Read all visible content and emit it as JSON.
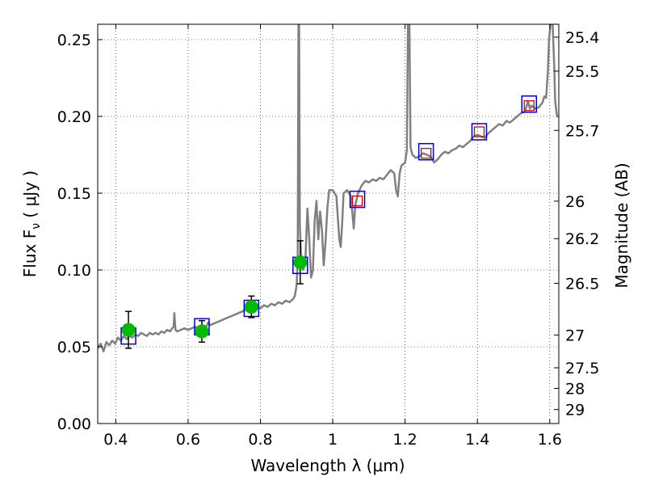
{
  "chart_data": {
    "type": "line",
    "xlabel": "Wavelength  λ (μm)",
    "ylabel": "Flux  F",
    "ylabel_sub": "ν",
    "ylabel_unit": " ( μJy )",
    "y2label": "Magnitude (AB)",
    "xlim": [
      0.35,
      1.625
    ],
    "ylim": [
      0.0,
      0.26
    ],
    "grid": true,
    "x_ticks": [
      {
        "value": 0.4,
        "label": "0.4"
      },
      {
        "value": 0.6,
        "label": "0.6"
      },
      {
        "value": 0.8,
        "label": "0.8"
      },
      {
        "value": 1.0,
        "label": "1"
      },
      {
        "value": 1.2,
        "label": "1.2"
      },
      {
        "value": 1.4,
        "label": "1.4"
      },
      {
        "value": 1.6,
        "label": "1.6"
      }
    ],
    "y_ticks": [
      {
        "value": 0.0,
        "label": "0.00"
      },
      {
        "value": 0.05,
        "label": "0.05"
      },
      {
        "value": 0.1,
        "label": "0.10"
      },
      {
        "value": 0.15,
        "label": "0.15"
      },
      {
        "value": 0.2,
        "label": "0.20"
      },
      {
        "value": 0.25,
        "label": "0.25"
      }
    ],
    "magnitude_ticks": [
      {
        "label": "25.4",
        "flux": 0.2516
      },
      {
        "label": "25.5",
        "flux": 0.2295
      },
      {
        "label": "25.7",
        "flux": 0.1909
      },
      {
        "label": "26",
        "flux": 0.1448
      },
      {
        "label": "26.2",
        "flux": 0.1204
      },
      {
        "label": "26.5",
        "flux": 0.0913
      },
      {
        "label": "27",
        "flux": 0.0576
      },
      {
        "label": "27.5",
        "flux": 0.0363
      },
      {
        "label": "28",
        "flux": 0.0229
      },
      {
        "label": "29",
        "flux": 0.0091
      }
    ],
    "series": [
      {
        "kind": "spectrum",
        "color": "#808080",
        "points": [
          [
            0.35,
            0.049
          ],
          [
            0.358,
            0.052
          ],
          [
            0.366,
            0.047
          ],
          [
            0.374,
            0.053
          ],
          [
            0.382,
            0.051
          ],
          [
            0.39,
            0.054
          ],
          [
            0.398,
            0.052
          ],
          [
            0.406,
            0.056
          ],
          [
            0.414,
            0.054
          ],
          [
            0.422,
            0.057
          ],
          [
            0.43,
            0.055
          ],
          [
            0.438,
            0.057
          ],
          [
            0.446,
            0.056
          ],
          [
            0.454,
            0.058
          ],
          [
            0.462,
            0.057
          ],
          [
            0.47,
            0.059
          ],
          [
            0.478,
            0.058
          ],
          [
            0.486,
            0.057
          ],
          [
            0.494,
            0.059
          ],
          [
            0.502,
            0.058
          ],
          [
            0.51,
            0.059
          ],
          [
            0.518,
            0.058
          ],
          [
            0.526,
            0.06
          ],
          [
            0.534,
            0.059
          ],
          [
            0.542,
            0.061
          ],
          [
            0.55,
            0.06
          ],
          [
            0.556,
            0.062
          ],
          [
            0.56,
            0.063
          ],
          [
            0.562,
            0.072
          ],
          [
            0.565,
            0.061
          ],
          [
            0.57,
            0.06
          ],
          [
            0.58,
            0.061
          ],
          [
            0.59,
            0.062
          ],
          [
            0.6,
            0.061
          ],
          [
            0.61,
            0.062
          ],
          [
            0.62,
            0.063
          ],
          [
            0.63,
            0.062
          ],
          [
            0.64,
            0.064
          ],
          [
            0.65,
            0.063
          ],
          [
            0.656,
            0.066
          ],
          [
            0.66,
            0.064
          ],
          [
            0.67,
            0.065
          ],
          [
            0.68,
            0.066
          ],
          [
            0.69,
            0.067
          ],
          [
            0.7,
            0.068
          ],
          [
            0.71,
            0.069
          ],
          [
            0.72,
            0.07
          ],
          [
            0.73,
            0.071
          ],
          [
            0.74,
            0.072
          ],
          [
            0.75,
            0.073
          ],
          [
            0.76,
            0.074
          ],
          [
            0.77,
            0.075
          ],
          [
            0.78,
            0.074
          ],
          [
            0.79,
            0.076
          ],
          [
            0.8,
            0.075
          ],
          [
            0.81,
            0.077
          ],
          [
            0.82,
            0.076
          ],
          [
            0.83,
            0.078
          ],
          [
            0.84,
            0.077
          ],
          [
            0.85,
            0.079
          ],
          [
            0.86,
            0.078
          ],
          [
            0.87,
            0.08
          ],
          [
            0.88,
            0.079
          ],
          [
            0.89,
            0.081
          ],
          [
            0.895,
            0.083
          ],
          [
            0.9,
            0.09
          ],
          [
            0.903,
            0.105
          ],
          [
            0.905,
            0.26
          ],
          [
            0.907,
            0.26
          ],
          [
            0.909,
            0.13
          ],
          [
            0.912,
            0.11
          ],
          [
            0.918,
            0.1
          ],
          [
            0.924,
            0.105
          ],
          [
            0.93,
            0.14
          ],
          [
            0.935,
            0.12
          ],
          [
            0.94,
            0.095
          ],
          [
            0.945,
            0.1
          ],
          [
            0.95,
            0.132
          ],
          [
            0.955,
            0.145
          ],
          [
            0.96,
            0.12
          ],
          [
            0.965,
            0.138
          ],
          [
            0.97,
            0.126
          ],
          [
            0.975,
            0.103
          ],
          [
            0.98,
            0.118
          ],
          [
            0.985,
            0.14
          ],
          [
            0.99,
            0.152
          ],
          [
            1.0,
            0.152
          ],
          [
            1.01,
            0.148
          ],
          [
            1.018,
            0.12
          ],
          [
            1.022,
            0.115
          ],
          [
            1.026,
            0.13
          ],
          [
            1.03,
            0.15
          ],
          [
            1.04,
            0.152
          ],
          [
            1.05,
            0.148
          ],
          [
            1.058,
            0.127
          ],
          [
            1.062,
            0.142
          ],
          [
            1.07,
            0.15
          ],
          [
            1.08,
            0.155
          ],
          [
            1.09,
            0.158
          ],
          [
            1.1,
            0.157
          ],
          [
            1.11,
            0.159
          ],
          [
            1.12,
            0.158
          ],
          [
            1.13,
            0.16
          ],
          [
            1.14,
            0.159
          ],
          [
            1.15,
            0.162
          ],
          [
            1.16,
            0.165
          ],
          [
            1.17,
            0.163
          ],
          [
            1.175,
            0.152
          ],
          [
            1.18,
            0.148
          ],
          [
            1.185,
            0.163
          ],
          [
            1.19,
            0.168
          ],
          [
            1.2,
            0.17
          ],
          [
            1.205,
            0.178
          ],
          [
            1.208,
            0.26
          ],
          [
            1.212,
            0.26
          ],
          [
            1.215,
            0.18
          ],
          [
            1.22,
            0.175
          ],
          [
            1.23,
            0.173
          ],
          [
            1.24,
            0.174
          ],
          [
            1.25,
            0.176
          ],
          [
            1.26,
            0.175
          ],
          [
            1.27,
            0.174
          ],
          [
            1.28,
            0.17
          ],
          [
            1.29,
            0.172
          ],
          [
            1.3,
            0.175
          ],
          [
            1.31,
            0.177
          ],
          [
            1.32,
            0.176
          ],
          [
            1.33,
            0.178
          ],
          [
            1.34,
            0.179
          ],
          [
            1.35,
            0.181
          ],
          [
            1.36,
            0.18
          ],
          [
            1.37,
            0.182
          ],
          [
            1.38,
            0.184
          ],
          [
            1.39,
            0.187
          ],
          [
            1.4,
            0.188
          ],
          [
            1.41,
            0.187
          ],
          [
            1.42,
            0.186
          ],
          [
            1.43,
            0.189
          ],
          [
            1.44,
            0.191
          ],
          [
            1.45,
            0.193
          ],
          [
            1.46,
            0.195
          ],
          [
            1.47,
            0.194
          ],
          [
            1.48,
            0.197
          ],
          [
            1.49,
            0.196
          ],
          [
            1.5,
            0.198
          ],
          [
            1.51,
            0.2
          ],
          [
            1.52,
            0.202
          ],
          [
            1.53,
            0.203
          ],
          [
            1.535,
            0.206
          ],
          [
            1.54,
            0.21
          ],
          [
            1.545,
            0.205
          ],
          [
            1.55,
            0.207
          ],
          [
            1.56,
            0.205
          ],
          [
            1.57,
            0.206
          ],
          [
            1.58,
            0.209
          ],
          [
            1.585,
            0.213
          ],
          [
            1.59,
            0.212
          ],
          [
            1.595,
            0.23
          ],
          [
            1.598,
            0.25
          ],
          [
            1.602,
            0.26
          ],
          [
            1.608,
            0.26
          ],
          [
            1.612,
            0.235
          ],
          [
            1.615,
            0.21
          ],
          [
            1.62,
            0.2
          ],
          [
            1.625,
            0.2
          ]
        ]
      },
      {
        "kind": "model_boxes",
        "color": "#0000cc",
        "points": [
          [
            0.435,
            0.057
          ],
          [
            0.638,
            0.063
          ],
          [
            0.775,
            0.075
          ],
          [
            0.91,
            0.103
          ],
          [
            1.068,
            0.146
          ],
          [
            1.258,
            0.177
          ],
          [
            1.405,
            0.19
          ],
          [
            1.543,
            0.208
          ]
        ]
      },
      {
        "kind": "measured_upper",
        "color": "#dd0000",
        "points": [
          [
            1.068,
            0.145
          ],
          [
            1.258,
            0.176
          ],
          [
            1.405,
            0.19
          ],
          [
            1.543,
            0.207
          ]
        ]
      },
      {
        "kind": "measured_points",
        "color": "#00bb00",
        "error_color": "#000000",
        "points": [
          [
            0.435,
            0.061,
            0.012
          ],
          [
            0.638,
            0.06,
            0.007
          ],
          [
            0.775,
            0.076,
            0.007
          ],
          [
            0.91,
            0.105,
            0.014
          ]
        ]
      }
    ]
  }
}
